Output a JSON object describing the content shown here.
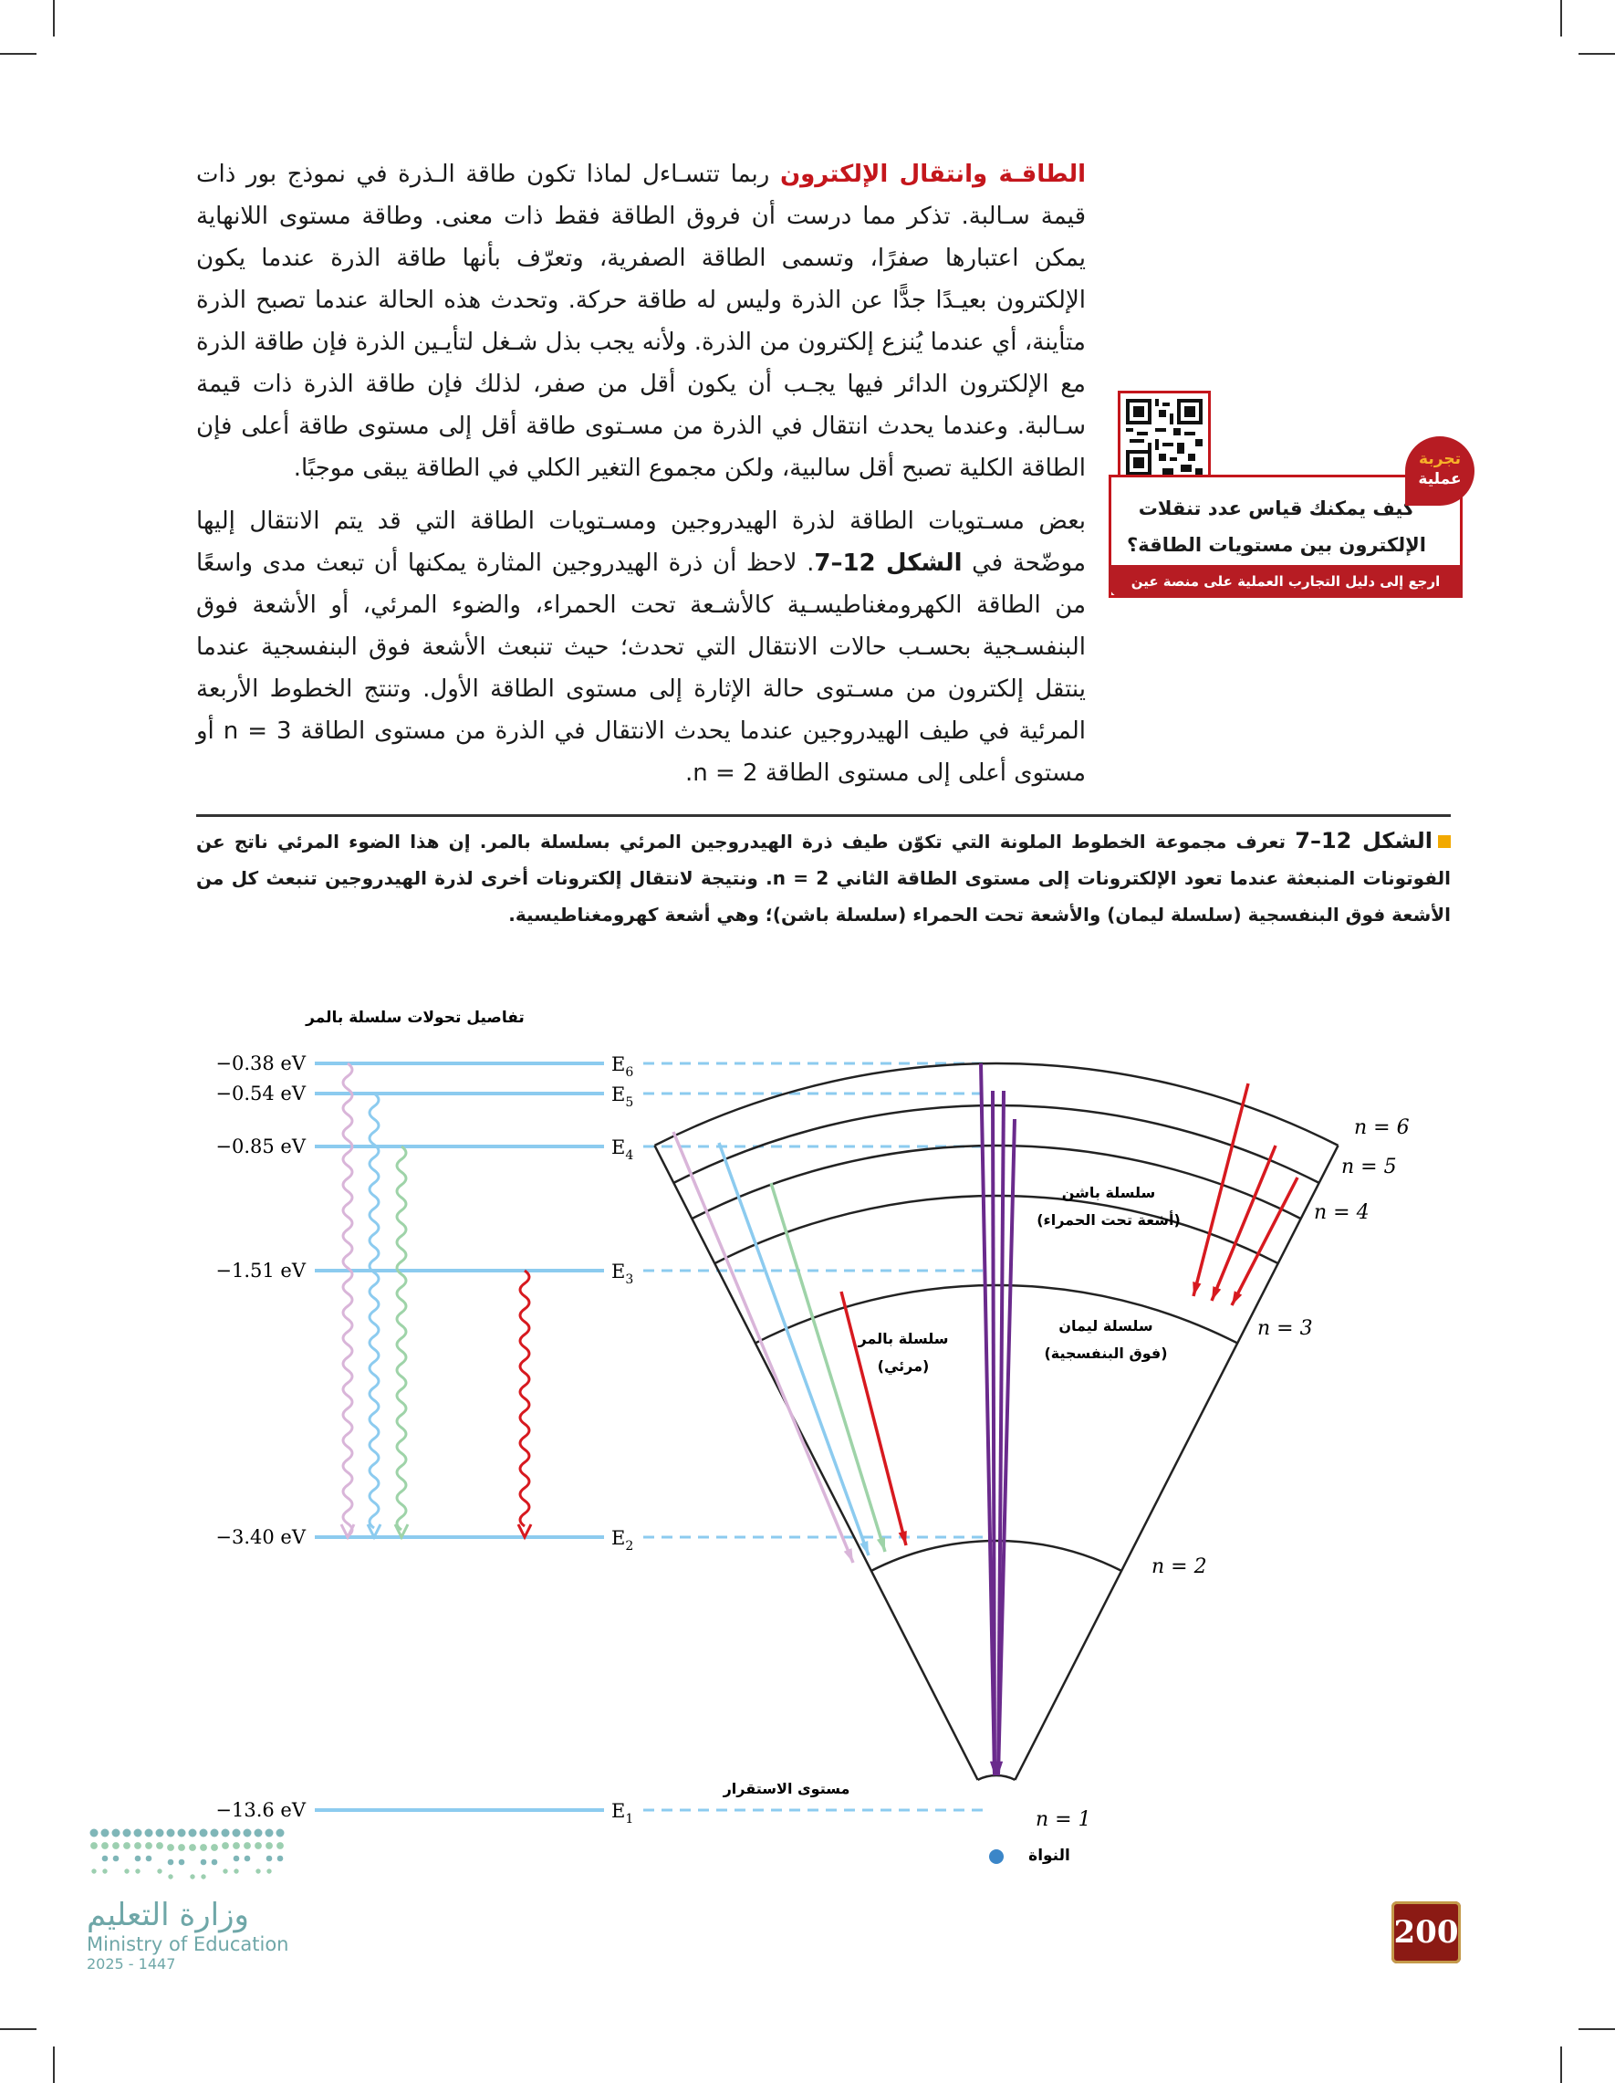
{
  "paragraph1": {
    "heading": "الطاقـة وانتقال الإلكترون",
    "body": "ربما تتسـاءل لماذا تكون طاقة الـذرة في نموذج بور ذات قيمة سـالبة. تذكر مما درست أن فروق الطاقة فقط ذات معنى. وطاقة مستوى اللانهاية يمكن اعتبارها صفرًا، وتسمى الطاقة الصفرية، وتعرّف بأنها طاقة الذرة عندما يكون الإلكترون بعيـدًا جدًّا عن الذرة وليس له طاقة حركة. وتحدث هذه الحالة عندما تصبح الذرة متأينة، أي عندما يُنزع إلكترون من الذرة. ولأنه يجب بذل شـغل لتأيـين الذرة فإن طاقة الذرة مع الإلكترون الدائر فيها يجـب أن يكون أقل من صفر، لذلك فإن طاقة الذرة ذات قيمة سـالبة. وعندما يحدث انتقال في الذرة من مسـتوى طاقة أقل إلى مستوى طاقة أعلى فإن الطاقة الكلية تصبح أقل سالبية، ولكن مجموع التغير الكلي في الطاقة يبقى موجبًا."
  },
  "paragraph2": {
    "part1": "بعض مسـتويات الطاقة لذرة الهيدروجين ومسـتويات الطاقة التي قد يتم الانتقال إليها موضّحة في ",
    "figref": "الشكل 12–7",
    "part2": ". لاحظ أن ذرة الهيدروجين المثارة يمكنها أن تبعث مدى واسعًا من الطاقة الكهرومغناطيسـية كالأشـعة تحت الحمراء، والضوء المرئي، أو الأشعة فوق البنفسـجية بحسـب حالات الانتقال التي تحدث؛ حيث تنبعث الأشعة فوق البنفسجية عندما ينتقل إلكترون من مسـتوى حالة الإثارة إلى مستوى الطاقة الأول. وتنتج الخطوط الأربعة المرئية في طيف الهيدروجين عندما يحدث الانتقال في الذرة من مستوى الطاقة n = 3 أو مستوى أعلى إلى مستوى الطاقة n = 2."
  },
  "caption": {
    "label": "الشكل 12–7",
    "text": "تعرف مجموعة الخطوط الملونة التي تكوّن طيف ذرة الهيدروجين المرئي بسلسلة بالمر. إن هذا الضوء المرئي ناتج عن الفوتونات المنبعثة عندما تعود الإلكترونات إلى مستوى الطاقة الثاني n = 2. ونتيجة لانتقال إلكترونات أخرى لذرة الهيدروجين تنبعث كل من الأشعة فوق البنفسجية (سلسلة ليمان) والأشعة تحت الحمراء (سلسلة باشن)؛ وهي أشعة كهرومغناطيسية."
  },
  "sidebar": {
    "badge_line1": "تجربة",
    "badge_line2": "عملية",
    "question": "كيف يمكنك قياس عدد تنقلات الإلكترون بين مستويات الطاقة؟",
    "footer": "ارجع إلى دليل التجارب العملية على منصة عين الإثرائية"
  },
  "diagram": {
    "balmer_title": "تفاصيل تحولات سلسلة بالمر",
    "levels": [
      {
        "energy": "−0.38 eV",
        "label": "E6"
      },
      {
        "energy": "−0.54 eV",
        "label": "E5"
      },
      {
        "energy": "−0.85 eV",
        "label": "E4"
      },
      {
        "energy": "−1.51 eV",
        "label": "E3"
      },
      {
        "energy": "−3.40 eV",
        "label": "E2"
      },
      {
        "energy": "−13.6 eV",
        "label": "E1"
      }
    ],
    "n_labels": [
      "n = 1",
      "n = 2",
      "n = 3",
      "n = 4",
      "n = 5",
      "n = 6"
    ],
    "paschen": {
      "name": "سلسلة باشن",
      "type": "(أشعة تحت الحمراء)"
    },
    "lyman": {
      "name": "سلسلة ليمان",
      "type": "(فوق البنفسجية)"
    },
    "balmer": {
      "name": "سلسلة بالمر",
      "type": "(مرئي)"
    },
    "ground_state": "مستوى الاستقرار",
    "nucleus": "النواة",
    "colors": {
      "level": "#8ccbef",
      "balmer_violet": "#d9b5d9",
      "balmer_blue": "#8ccbef",
      "balmer_green": "#9ed3a8",
      "red": "#d7191f",
      "lyman": "#6a2a8c",
      "nucleus": "#3b86c8"
    }
  },
  "footer": {
    "page_number": "200",
    "ministry_ar": "وزارة التعليم",
    "ministry_en": "Ministry of Education",
    "year": "2025 - 1447"
  }
}
